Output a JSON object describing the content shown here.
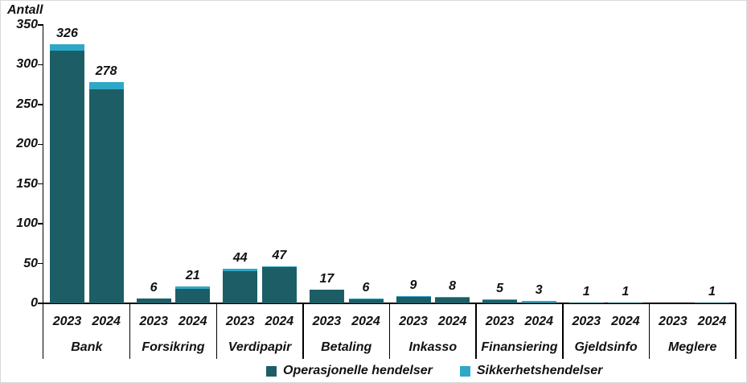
{
  "title": "Antall",
  "colors": {
    "operational": "#1d5e66",
    "security": "#2fa8c8",
    "axis": "#000000",
    "text": "#111111"
  },
  "legend": [
    {
      "label": "Operasjonelle hendelser",
      "color_key": "operational"
    },
    {
      "label": "Sikkerhetshendelser",
      "color_key": "security"
    }
  ],
  "chart_data": {
    "type": "bar",
    "stacked": true,
    "title": "",
    "ylabel": "Antall",
    "xlabel": "",
    "ylim": [
      0,
      350
    ],
    "ytick_step": 50,
    "yticks": [
      0,
      50,
      100,
      150,
      200,
      250,
      300,
      350
    ],
    "grid": false,
    "legend_position": "bottom",
    "series_names": [
      "Operasjonelle hendelser",
      "Sikkerhetshendelser"
    ],
    "groups": [
      {
        "category": "Bank",
        "bars": [
          {
            "year": "2023",
            "total": 326,
            "operational": 318,
            "security": 8
          },
          {
            "year": "2024",
            "total": 278,
            "operational": 269,
            "security": 9
          }
        ]
      },
      {
        "category": "Forsikring",
        "bars": [
          {
            "year": "2023",
            "total": 6,
            "operational": 6,
            "security": 0
          },
          {
            "year": "2024",
            "total": 21,
            "operational": 18,
            "security": 3
          }
        ]
      },
      {
        "category": "Verdipapir",
        "bars": [
          {
            "year": "2023",
            "total": 44,
            "operational": 40,
            "security": 4
          },
          {
            "year": "2024",
            "total": 47,
            "operational": 46,
            "security": 1
          }
        ]
      },
      {
        "category": "Betaling",
        "bars": [
          {
            "year": "2023",
            "total": 17,
            "operational": 17,
            "security": 0
          },
          {
            "year": "2024",
            "total": 6,
            "operational": 5,
            "security": 1
          }
        ]
      },
      {
        "category": "Inkasso",
        "bars": [
          {
            "year": "2023",
            "total": 9,
            "operational": 8,
            "security": 1
          },
          {
            "year": "2024",
            "total": 8,
            "operational": 7,
            "security": 1
          }
        ]
      },
      {
        "category": "Finansiering",
        "bars": [
          {
            "year": "2023",
            "total": 5,
            "operational": 4,
            "security": 1
          },
          {
            "year": "2024",
            "total": 3,
            "operational": 1,
            "security": 2
          }
        ]
      },
      {
        "category": "Gjeldsinfo",
        "bars": [
          {
            "year": "2023",
            "total": 1,
            "operational": 1,
            "security": 0
          },
          {
            "year": "2024",
            "total": 1,
            "operational": 1,
            "security": 0
          }
        ]
      },
      {
        "category": "Meglere",
        "bars": [
          {
            "year": "2023",
            "total": 0,
            "operational": 0,
            "security": 0
          },
          {
            "year": "2024",
            "total": 1,
            "operational": 1,
            "security": 0
          }
        ]
      }
    ]
  }
}
